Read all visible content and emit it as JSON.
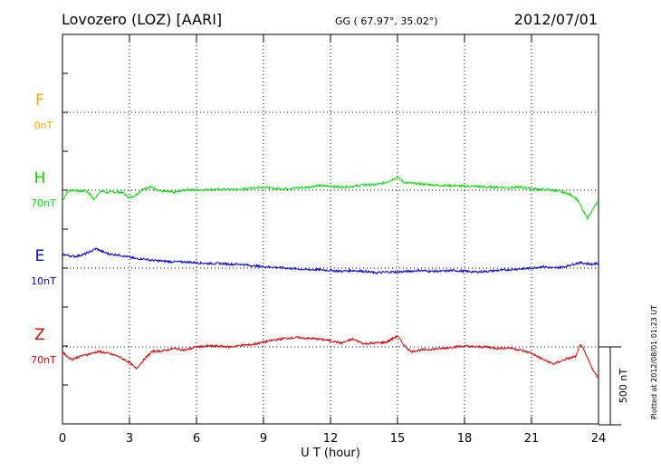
{
  "header": {
    "station": "Lovozero (LOZ)  [AARI]",
    "coords": "GG ( 67.97°,  35.02°)",
    "date": "2012/07/01"
  },
  "footer_note": "Plotted at 2012/08/01 01:23 UT",
  "chart_data": {
    "type": "line",
    "xlabel": "U T (hour)",
    "xlim": [
      0,
      24
    ],
    "xticks": [
      "0",
      "3",
      "6",
      "9",
      "12",
      "15",
      "18",
      "21",
      "24"
    ],
    "scale_bar": "500 nT",
    "colors": {
      "F": "#ffa500",
      "H": "#00dd00",
      "E": "#0000dd",
      "Z": "#dd0000"
    },
    "series": [
      {
        "name": "F",
        "offset": "0nT",
        "x": [],
        "y": []
      },
      {
        "name": "H",
        "offset": "70nT",
        "x": [
          0,
          0.2,
          0.4,
          0.6,
          0.8,
          1.0,
          1.2,
          1.4,
          1.6,
          1.8,
          2.0,
          2.3,
          2.7,
          3.0,
          3.3,
          3.6,
          4.0,
          4.3,
          4.6,
          5.0,
          5.3,
          5.6,
          6.0,
          6.5,
          7.0,
          7.5,
          8.0,
          8.5,
          9.0,
          9.5,
          10.0,
          10.5,
          11.0,
          11.5,
          12.0,
          12.5,
          13.0,
          13.5,
          14.0,
          14.5,
          15.0,
          15.3,
          15.6,
          16.0,
          16.5,
          17.0,
          17.5,
          18.0,
          18.5,
          19.0,
          19.5,
          20.0,
          20.5,
          21.0,
          21.5,
          22.0,
          22.3,
          22.6,
          22.9,
          23.1,
          23.3,
          23.5,
          23.8,
          24.0
        ],
        "y": [
          -70,
          -15,
          0,
          0,
          -10,
          0,
          -20,
          -60,
          -20,
          -5,
          -15,
          -10,
          -15,
          -50,
          -30,
          10,
          20,
          0,
          -10,
          -15,
          -5,
          5,
          0,
          5,
          5,
          5,
          5,
          15,
          20,
          10,
          10,
          15,
          20,
          30,
          25,
          20,
          25,
          35,
          35,
          50,
          85,
          50,
          45,
          40,
          35,
          30,
          30,
          25,
          25,
          20,
          20,
          15,
          20,
          10,
          5,
          0,
          -10,
          -20,
          -40,
          -70,
          -130,
          -180,
          -110,
          -70
        ]
      },
      {
        "name": "E",
        "offset": "10nT",
        "x": [
          0,
          0.3,
          0.6,
          1.0,
          1.3,
          1.5,
          1.8,
          2.1,
          2.5,
          3.0,
          3.3,
          3.6,
          4.0,
          4.5,
          5.0,
          5.5,
          6.0,
          6.5,
          7.0,
          7.5,
          8.0,
          8.5,
          9.0,
          9.5,
          10.0,
          10.5,
          11.0,
          11.5,
          12.0,
          12.5,
          13.0,
          13.5,
          14.0,
          14.5,
          15.0,
          15.5,
          16.0,
          16.5,
          17.0,
          17.5,
          18.0,
          18.5,
          19.0,
          19.5,
          20.0,
          20.5,
          21.0,
          21.5,
          22.0,
          22.5,
          23.0,
          23.2,
          23.4,
          23.7,
          24.0
        ],
        "y": [
          90,
          80,
          75,
          90,
          110,
          125,
          105,
          90,
          85,
          70,
          60,
          60,
          50,
          45,
          40,
          40,
          35,
          30,
          30,
          25,
          25,
          15,
          10,
          5,
          0,
          -5,
          -10,
          -10,
          -15,
          -20,
          -15,
          -20,
          -30,
          -25,
          -25,
          -20,
          -15,
          -20,
          -20,
          -15,
          -20,
          -25,
          -20,
          -15,
          -10,
          -5,
          0,
          10,
          0,
          10,
          30,
          35,
          30,
          25,
          30
        ]
      },
      {
        "name": "Z",
        "offset": "70nT",
        "x": [
          0,
          0.2,
          0.4,
          0.8,
          1.2,
          1.6,
          2.0,
          2.5,
          3.0,
          3.3,
          3.6,
          4.0,
          4.5,
          5.0,
          5.5,
          6.0,
          6.5,
          7.0,
          7.5,
          8.0,
          8.5,
          9.0,
          9.5,
          10.0,
          10.5,
          11.0,
          11.5,
          12.0,
          12.5,
          13.0,
          13.5,
          14.0,
          14.5,
          15.0,
          15.3,
          15.6,
          16.0,
          16.5,
          17.0,
          17.5,
          18.0,
          18.5,
          19.0,
          19.5,
          20.0,
          20.5,
          21.0,
          21.5,
          22.0,
          22.5,
          23.0,
          23.2,
          23.5,
          23.8,
          24.0
        ],
        "y": [
          -30,
          -60,
          -80,
          -60,
          -45,
          -30,
          -40,
          -60,
          -100,
          -140,
          -90,
          -30,
          -25,
          -10,
          -20,
          0,
          5,
          5,
          0,
          10,
          15,
          30,
          45,
          55,
          60,
          55,
          50,
          40,
          25,
          50,
          20,
          25,
          30,
          70,
          10,
          -30,
          -20,
          -15,
          -10,
          0,
          5,
          0,
          0,
          -10,
          -5,
          -20,
          -40,
          -80,
          -110,
          -80,
          -60,
          20,
          -70,
          -160,
          -200
        ]
      }
    ]
  }
}
